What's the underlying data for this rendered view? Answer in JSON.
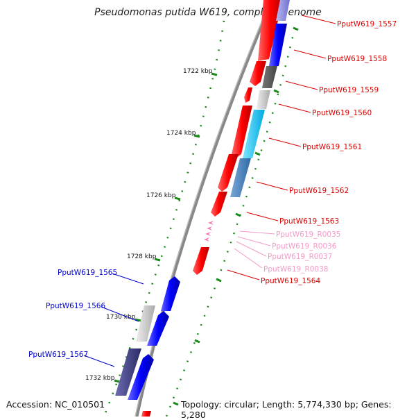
{
  "title": "Pseudomonas putida W619, complete genome",
  "footer": {
    "accession": "Accession: NC_010501",
    "topology": "Topology: circular; Length: 5,774,330 bp; Genes: 5,280"
  },
  "scale_labels": [
    "1722 kbp",
    "1724 kbp",
    "1726 kbp",
    "1728 kbp",
    "1730 kbp",
    "1732 kbp"
  ],
  "genes_right": [
    {
      "name": "PputW619_1557",
      "color": "#dd0000"
    },
    {
      "name": "PputW619_1558",
      "color": "#dd0000"
    },
    {
      "name": "PputW619_1559",
      "color": "#dd0000"
    },
    {
      "name": "PputW619_1560",
      "color": "#dd0000"
    },
    {
      "name": "PputW619_1561",
      "color": "#dd0000"
    },
    {
      "name": "PputW619_1562",
      "color": "#dd0000"
    },
    {
      "name": "PputW619_1563",
      "color": "#dd0000"
    },
    {
      "name": "PputW619_R0035",
      "color": "#f29ac8"
    },
    {
      "name": "PputW619_R0036",
      "color": "#f29ac8"
    },
    {
      "name": "PputW619_R0037",
      "color": "#f29ac8"
    },
    {
      "name": "PputW619_R0038",
      "color": "#f29ac8"
    },
    {
      "name": "PputW619_1564",
      "color": "#dd0000"
    }
  ],
  "genes_left": [
    {
      "name": "PputW619_1565",
      "color": "#0000cc"
    },
    {
      "name": "PputW619_1566",
      "color": "#0000cc"
    },
    {
      "name": "PputW619_1567",
      "color": "#0000cc"
    }
  ]
}
